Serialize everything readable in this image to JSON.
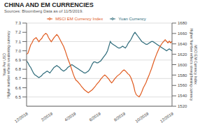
{
  "chart_data": {
    "type": "line",
    "title": "CHINA AND EM CURRENCIES",
    "subtitle": "Sources: Bloomberg Data as of 11/5/2019.",
    "categories": [
      "12/2018",
      null,
      null,
      null,
      null,
      null,
      null,
      null,
      null,
      null,
      null,
      null,
      null,
      null,
      null,
      null,
      null,
      null,
      "2/2019",
      null,
      null,
      null,
      null,
      null,
      null,
      null,
      null,
      null,
      null,
      null,
      null,
      null,
      null,
      null,
      null,
      "4/2019",
      null,
      null,
      null,
      null,
      null,
      null,
      null,
      null,
      null,
      null,
      null,
      null,
      null,
      null,
      null,
      null,
      null,
      "6/2019",
      null,
      null,
      null,
      null,
      null,
      null,
      null,
      null,
      null,
      null,
      null,
      null,
      null,
      null,
      null,
      null,
      null,
      "8/2019",
      null,
      null,
      null,
      null,
      null,
      null,
      null,
      null,
      null,
      null,
      null,
      null,
      null,
      null,
      null,
      null,
      "10/2019",
      null,
      null,
      null,
      null,
      null,
      null,
      null,
      null,
      null,
      null,
      null,
      null,
      null,
      null,
      null,
      null,
      null,
      "12/2019"
    ],
    "series": [
      {
        "name": "Yuan Currency",
        "color": "#2e6b7a",
        "values": [
          6.89,
          6.87,
          6.84,
          6.82,
          6.79,
          6.76,
          6.74,
          6.73,
          6.72,
          6.71,
          6.72,
          6.73,
          6.75,
          6.76,
          6.77,
          6.78,
          6.77,
          6.76,
          6.78,
          6.8,
          6.82,
          6.83,
          6.84,
          6.83,
          6.82,
          6.8,
          6.79,
          6.78,
          6.79,
          6.8,
          6.82,
          6.83,
          6.84,
          6.85,
          6.84,
          6.83,
          6.82,
          6.81,
          6.8,
          6.79,
          6.78,
          6.77,
          6.76,
          6.76,
          6.77,
          6.78,
          6.8,
          6.83,
          6.86,
          6.88,
          6.88,
          6.87,
          6.87,
          6.88,
          6.89,
          6.91,
          6.93,
          6.95,
          6.97,
          7.0,
          7.05,
          7.1,
          7.08,
          7.07,
          7.06,
          7.05,
          7.04,
          7.03,
          7.03,
          7.04,
          7.05,
          7.04,
          7.03,
          7.05,
          7.08,
          7.1,
          7.12,
          7.15,
          7.18,
          7.2,
          7.18,
          7.16,
          7.14,
          7.12,
          7.1,
          7.09,
          7.08,
          7.07,
          7.07,
          7.08,
          7.09,
          7.1,
          7.1,
          7.09,
          7.08,
          7.07,
          7.06,
          7.05,
          7.04,
          7.03,
          7.02,
          7.01,
          7.0,
          7.01,
          7.02,
          7.01,
          7.0
        ]
      },
      {
        "name": "MSCI EM Currency Index",
        "color": "#e05a1e",
        "axis": "y2",
        "values": [
          1620,
          1622,
          1630,
          1638,
          1642,
          1648,
          1650,
          1652,
          1648,
          1644,
          1648,
          1650,
          1655,
          1658,
          1660,
          1658,
          1652,
          1648,
          1644,
          1648,
          1652,
          1655,
          1658,
          1655,
          1650,
          1645,
          1640,
          1635,
          1628,
          1620,
          1612,
          1605,
          1598,
          1590,
          1582,
          1575,
          1570,
          1568,
          1565,
          1562,
          1558,
          1555,
          1552,
          1550,
          1548,
          1546,
          1548,
          1550,
          1552,
          1555,
          1558,
          1562,
          1565,
          1568,
          1572,
          1575,
          1578,
          1580,
          1578,
          1575,
          1572,
          1568,
          1565,
          1568,
          1572,
          1575,
          1578,
          1580,
          1582,
          1585,
          1588,
          1590,
          1588,
          1585,
          1582,
          1580,
          1575,
          1568,
          1560,
          1548,
          1542,
          1540,
          1538,
          1542,
          1548,
          1555,
          1560,
          1565,
          1572,
          1578,
          1585,
          1592,
          1600,
          1608,
          1615,
          1622,
          1628,
          1634,
          1638,
          1642,
          1645,
          1648,
          1645,
          1642,
          1645,
          1642,
          1645
        ]
      }
    ],
    "ylabel": "Yuan Per USD\nHigher number reflects weakening currency",
    "y2label": "MSCI EM Currency Index\nHigher Number reflects strengthening currency",
    "ylim": [
      6.4,
      7.3
    ],
    "yticks": [
      6.5,
      6.6,
      6.7,
      6.8,
      6.9,
      {
        "value": 7.0,
        "label": "7.0"
      },
      7.1,
      7.2,
      7.3
    ],
    "y2lim": [
      1520,
      1680
    ],
    "y2ticks": [
      1520,
      1540,
      1560,
      1580,
      1600,
      1620,
      1640,
      1660,
      1680
    ],
    "grid": true,
    "legend": "top"
  }
}
